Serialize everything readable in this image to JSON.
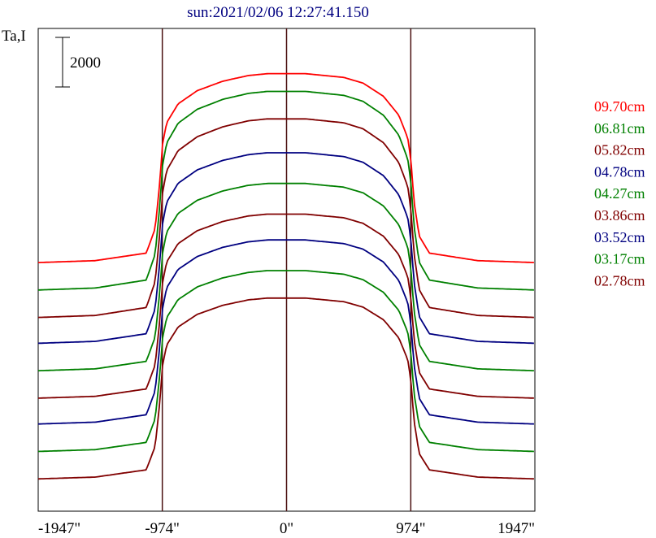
{
  "chart_data": {
    "type": "line",
    "title": "sun:2021/02/06 12:27:41.150",
    "ylabel": "Ta,I",
    "scale_bar_label": "2000",
    "scale_bar_value": 2000,
    "x_ticks": [
      {
        "value": -1947,
        "label": "-1947\""
      },
      {
        "value": -974,
        "label": "-974\""
      },
      {
        "value": 0,
        "label": "0\""
      },
      {
        "value": 974,
        "label": "974\""
      },
      {
        "value": 1947,
        "label": "1947\""
      }
    ],
    "xlim": [
      -1947,
      1947
    ],
    "vlines": [
      -974,
      0,
      974
    ],
    "profile": {
      "x": [
        -1947,
        -1500,
        -1100,
        -1030,
        -990,
        -974,
        -940,
        -850,
        -700,
        -500,
        -300,
        -150,
        0,
        150,
        300,
        450,
        600,
        760,
        880,
        950,
        974,
        1000,
        1040,
        1120,
        1500,
        1947
      ],
      "rel": [
        0,
        0.01,
        0.05,
        0.18,
        0.45,
        0.62,
        0.74,
        0.84,
        0.91,
        0.96,
        0.99,
        1.0,
        1.0,
        1.0,
        0.99,
        0.98,
        0.95,
        0.88,
        0.78,
        0.66,
        0.55,
        0.32,
        0.14,
        0.05,
        0.01,
        0
      ]
    },
    "series": [
      {
        "name": "09.70cm",
        "color": "#ff0000",
        "base": 14.8,
        "amplitude": 11.7
      },
      {
        "name": "06.81cm",
        "color": "#008000",
        "base": 13.1,
        "amplitude": 12.3
      },
      {
        "name": "05.82cm",
        "color": "#800000",
        "base": 11.4,
        "amplitude": 12.3
      },
      {
        "name": "04.78cm",
        "color": "#000080",
        "base": 9.8,
        "amplitude": 11.8
      },
      {
        "name": "04.27cm",
        "color": "#008000",
        "base": 8.1,
        "amplitude": 11.6
      },
      {
        "name": "03.86cm",
        "color": "#800000",
        "base": 6.4,
        "amplitude": 11.4
      },
      {
        "name": "03.52cm",
        "color": "#000080",
        "base": 4.8,
        "amplitude": 11.4
      },
      {
        "name": "03.17cm",
        "color": "#008000",
        "base": 3.1,
        "amplitude": 11.2
      },
      {
        "name": "02.78cm",
        "color": "#800000",
        "base": 1.4,
        "amplitude": 11.2
      }
    ],
    "ylim": [
      -0.6,
      29.3
    ],
    "grid": false,
    "legend": "right"
  }
}
